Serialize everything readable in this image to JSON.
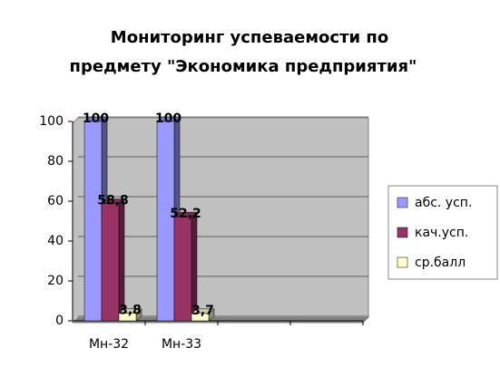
{
  "chart_data": {
    "type": "bar",
    "title": [
      "Мониторинг успеваемости по",
      "предмету \"Экономика предприятия\""
    ],
    "categories": [
      "Мн-32",
      "Мн-33",
      null,
      null
    ],
    "series": [
      {
        "name": "абс. усп.",
        "color": "#9999ff",
        "values": [
          100,
          100,
          null,
          null
        ]
      },
      {
        "name": "кач.усп.",
        "color": "#993366",
        "values": [
          58.8,
          52.2,
          null,
          null
        ],
        "value_labels": [
          "58,8",
          "52,2",
          null,
          null
        ]
      },
      {
        "name": "ср.балл",
        "color": "#ffffcc",
        "values": [
          3.8,
          3.7,
          null,
          null
        ],
        "value_labels": [
          "3,8",
          "3,7",
          null,
          null
        ]
      }
    ],
    "ylim": [
      0,
      100
    ],
    "yticks": [
      0,
      20,
      40,
      60,
      80,
      100
    ],
    "grid": true,
    "legend": "right"
  }
}
